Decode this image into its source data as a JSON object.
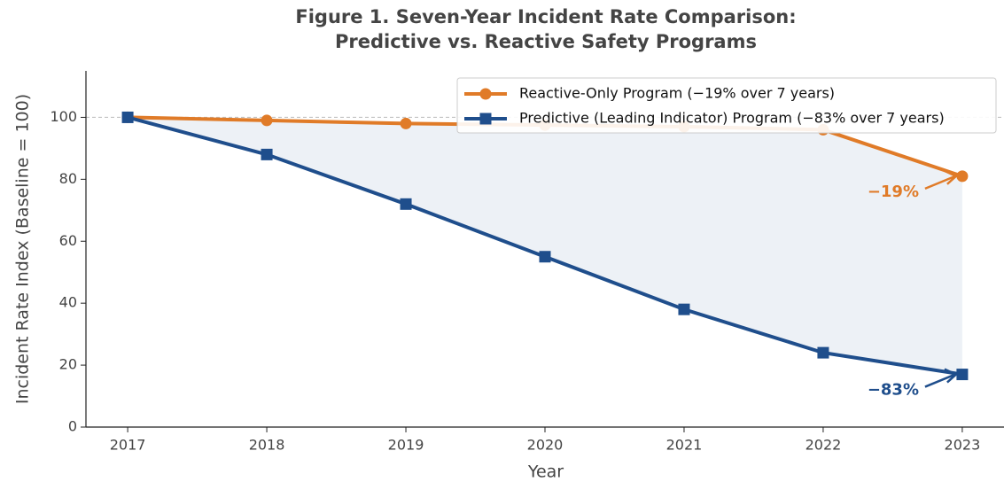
{
  "chart_data": {
    "type": "line",
    "title": "Figure 1. Seven-Year Incident Rate Comparison:",
    "subtitle": "Predictive vs. Reactive Safety Programs",
    "x_label": "Year",
    "y_label": "Incident Rate Index (Baseline = 100)",
    "x": [
      2017,
      2018,
      2019,
      2020,
      2021,
      2022,
      2023
    ],
    "series": [
      {
        "name": "Reactive-Only Program (−19% over 7 years)",
        "color": "#e07b28",
        "marker": "circle",
        "values": [
          100,
          99,
          98,
          97.5,
          97,
          96,
          81
        ]
      },
      {
        "name": "Predictive (Leading Indicator) Program (−83% over 7 years)",
        "color": "#1f4e8c",
        "marker": "square",
        "values": [
          100,
          88,
          72,
          55,
          38,
          24,
          17
        ]
      }
    ],
    "annotations": [
      "−19%",
      "−83%"
    ],
    "reference_line": 100,
    "xlim": [
      2016.7,
      2023.3
    ],
    "ylim": [
      0,
      115
    ],
    "xticks": [
      2017,
      2018,
      2019,
      2020,
      2021,
      2022,
      2023
    ],
    "yticks": [
      0,
      20,
      40,
      60,
      80,
      100
    ],
    "legend": "upper right",
    "fill_between": true
  }
}
